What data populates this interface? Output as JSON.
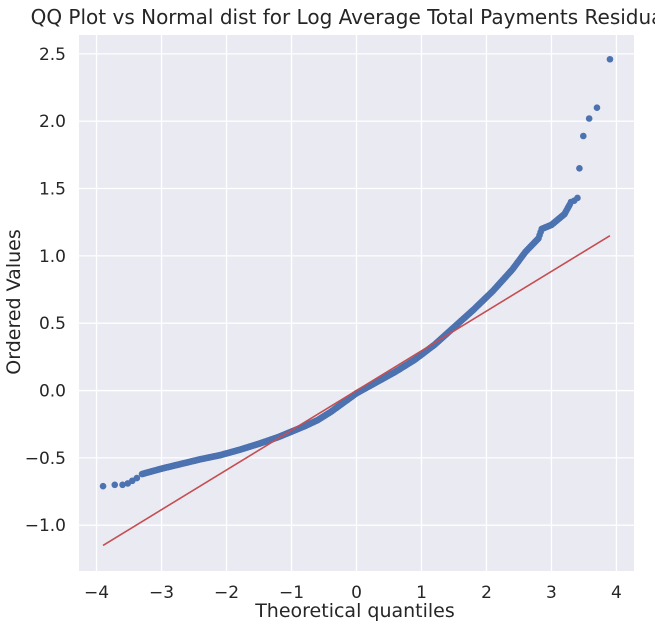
{
  "chart_data": {
    "type": "scatter",
    "title": "QQ Plot vs Normal dist for Log Average Total Payments Residuals",
    "xlabel": "Theoretical quantiles",
    "ylabel": "Ordered Values",
    "xlim": [
      -4.27,
      4.27
    ],
    "ylim": [
      -1.34,
      2.64
    ],
    "xticks": [
      -4,
      -3,
      -2,
      -1,
      0,
      1,
      2,
      3,
      4
    ],
    "yticks": [
      -1.0,
      -0.5,
      0.0,
      0.5,
      1.0,
      1.5,
      2.0,
      2.5
    ],
    "xtick_labels": [
      "−4",
      "−3",
      "−2",
      "−1",
      "0",
      "1",
      "2",
      "3",
      "4"
    ],
    "ytick_labels": [
      "−1.0",
      "−0.5",
      "0.0",
      "0.5",
      "1.0",
      "1.5",
      "2.0",
      "2.5"
    ],
    "grid": true,
    "background": "#eaeaf2",
    "grid_color": "#ffffff",
    "points_color": "#4c72b0",
    "line_color": "#c44e52",
    "reference_line": {
      "x": [
        -3.9,
        3.9
      ],
      "y": [
        -1.15,
        1.15
      ]
    },
    "outliers": {
      "x": [
        -3.9,
        -3.72,
        -3.6,
        -3.52,
        -3.45,
        -3.38,
        3.3,
        3.35,
        3.4,
        3.43,
        3.49,
        3.58,
        3.7,
        3.9
      ],
      "y": [
        -0.71,
        -0.7,
        -0.7,
        -0.69,
        -0.67,
        -0.65,
        1.4,
        1.41,
        1.43,
        1.65,
        1.89,
        2.02,
        2.1,
        2.46
      ]
    },
    "curve": {
      "x": [
        -3.3,
        -3.0,
        -2.7,
        -2.4,
        -2.1,
        -1.8,
        -1.5,
        -1.2,
        -1.0,
        -0.8,
        -0.6,
        -0.4,
        -0.2,
        0.0,
        0.3,
        0.6,
        0.9,
        1.2,
        1.5,
        1.8,
        2.1,
        2.4,
        2.6,
        2.8,
        2.85,
        3.0,
        3.2,
        3.28
      ],
      "y": [
        -0.62,
        -0.58,
        -0.545,
        -0.51,
        -0.48,
        -0.44,
        -0.395,
        -0.345,
        -0.305,
        -0.265,
        -0.22,
        -0.16,
        -0.09,
        -0.02,
        0.06,
        0.14,
        0.23,
        0.34,
        0.47,
        0.6,
        0.74,
        0.9,
        1.03,
        1.13,
        1.2,
        1.23,
        1.31,
        1.38
      ]
    }
  }
}
